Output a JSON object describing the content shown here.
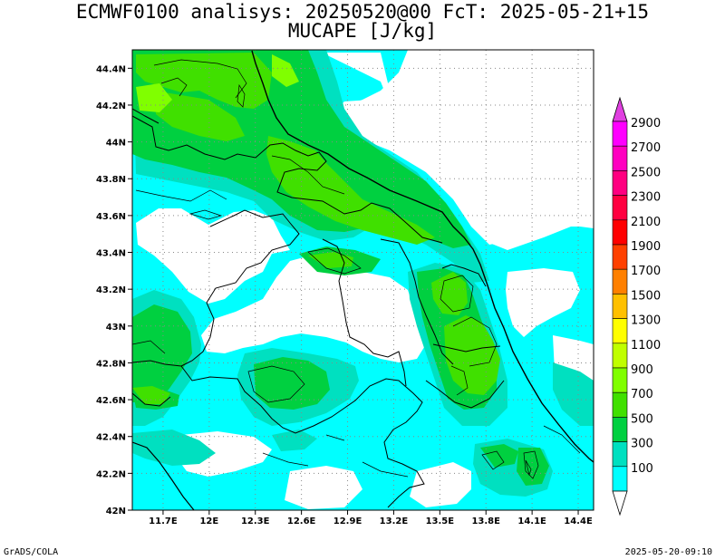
{
  "header": {
    "title_line1": "ECMWF0100 analisys: 20250520@00 FcT: 2025-05-21+15",
    "title_line2": "MUCAPE [J/kg]"
  },
  "footer": {
    "left": "GrADS/COLA",
    "right": "2025-05-20-09:10"
  },
  "map": {
    "lat_labels": [
      "44.4N",
      "44.2N",
      "44N",
      "43.8N",
      "43.6N",
      "43.4N",
      "43.2N",
      "43N",
      "42.8N",
      "42.6N",
      "42.4N",
      "42.2N",
      "42N"
    ],
    "lon_labels": [
      "11.7E",
      "12E",
      "12.3E",
      "12.6E",
      "12.9E",
      "13.2E",
      "13.5E",
      "13.8E",
      "14.1E",
      "14.4E"
    ],
    "lat_range": [
      42.0,
      44.5
    ],
    "lon_range": [
      11.5,
      14.5
    ],
    "grid": "dotted"
  },
  "colorbar": {
    "labels": [
      "2900",
      "2700",
      "2500",
      "2300",
      "2100",
      "1900",
      "1700",
      "1500",
      "1300",
      "1100",
      "900",
      "700",
      "500",
      "300",
      "100"
    ],
    "colors": [
      "#ff00ff",
      "#ff00c0",
      "#ff0080",
      "#ff0040",
      "#ff0000",
      "#ff4000",
      "#ff8000",
      "#ffc000",
      "#ffff00",
      "#c0ff00",
      "#80ff00",
      "#40e000",
      "#00d040",
      "#00e0c0",
      "#00ffff"
    ],
    "top_arrow_color": "#e040e0",
    "bottom_arrow_color": "#ffffff"
  },
  "fill_colors": {
    "cyan": "#00ffff",
    "teal": "#00e0c0",
    "green": "#00d040",
    "lightgreen": "#40e000",
    "lime": "#80ff00"
  }
}
